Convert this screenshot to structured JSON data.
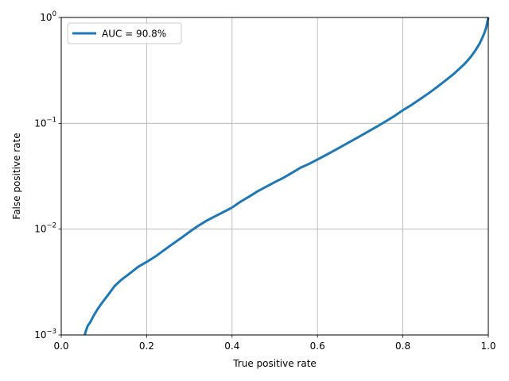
{
  "chart_data": {
    "type": "line",
    "xlabel": "True positive rate",
    "ylabel": "False positive rate",
    "xlim": [
      0,
      1
    ],
    "ylim": [
      0.001,
      1
    ],
    "yscale": "log",
    "grid": true,
    "legend": {
      "placement": "top-left"
    },
    "x_ticks": [
      {
        "value": 0.0,
        "label": "0.0"
      },
      {
        "value": 0.2,
        "label": "0.2"
      },
      {
        "value": 0.4,
        "label": "0.4"
      },
      {
        "value": 0.6,
        "label": "0.6"
      },
      {
        "value": 0.8,
        "label": "0.8"
      },
      {
        "value": 1.0,
        "label": "1.0"
      }
    ],
    "y_ticks": [
      {
        "value": 0.001,
        "base": "10",
        "exp": "−3"
      },
      {
        "value": 0.01,
        "base": "10",
        "exp": "−2"
      },
      {
        "value": 0.1,
        "base": "10",
        "exp": "−1"
      },
      {
        "value": 1,
        "base": "10",
        "exp": "0"
      }
    ],
    "series": [
      {
        "name": "AUC = 90.8%",
        "color": "#1f77b4",
        "x": [
          0.055,
          0.058,
          0.062,
          0.068,
          0.075,
          0.085,
          0.095,
          0.11,
          0.125,
          0.14,
          0.16,
          0.18,
          0.2,
          0.22,
          0.24,
          0.26,
          0.28,
          0.3,
          0.32,
          0.34,
          0.36,
          0.38,
          0.4,
          0.42,
          0.44,
          0.46,
          0.48,
          0.5,
          0.52,
          0.54,
          0.56,
          0.58,
          0.6,
          0.62,
          0.64,
          0.66,
          0.68,
          0.7,
          0.72,
          0.74,
          0.76,
          0.78,
          0.8,
          0.82,
          0.84,
          0.86,
          0.88,
          0.9,
          0.92,
          0.94,
          0.95,
          0.96,
          0.97,
          0.98,
          0.985,
          0.99,
          0.995,
          1.0
        ],
        "y": [
          0.001,
          0.0011,
          0.00122,
          0.00132,
          0.0015,
          0.00175,
          0.002,
          0.0024,
          0.0029,
          0.0033,
          0.0038,
          0.0044,
          0.0049,
          0.0055,
          0.0063,
          0.0072,
          0.0082,
          0.0094,
          0.0107,
          0.012,
          0.0132,
          0.0145,
          0.016,
          0.0182,
          0.0203,
          0.0228,
          0.0252,
          0.0278,
          0.0305,
          0.034,
          0.038,
          0.0413,
          0.0455,
          0.0502,
          0.0555,
          0.0615,
          0.0683,
          0.0758,
          0.0842,
          0.0935,
          0.1045,
          0.117,
          0.133,
          0.149,
          0.169,
          0.192,
          0.22,
          0.254,
          0.295,
          0.35,
          0.385,
          0.43,
          0.49,
          0.57,
          0.63,
          0.7,
          0.8,
          1.0
        ]
      }
    ]
  }
}
